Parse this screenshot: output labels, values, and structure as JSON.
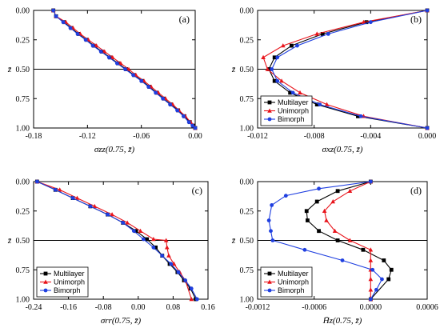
{
  "colors": {
    "Multilayer": "#000000",
    "Unimorph": "#e8141b",
    "Bimorph": "#1f3fe0",
    "frame": "#000000",
    "midline": "#000000"
  },
  "markers": {
    "Multilayer": "square",
    "Unimorph": "triangle",
    "Bimorph": "circle"
  },
  "chart_data": [
    {
      "type": "line",
      "panel_label": "(a)",
      "xlabel": "σzz(0.75, z̄)",
      "ylabel": "z̄",
      "xlim": [
        -0.18,
        0.0
      ],
      "ylim": [
        0.0,
        1.0
      ],
      "y_inverted": true,
      "xticks": [
        -0.18,
        -0.12,
        -0.06,
        0.0
      ],
      "xtick_labels": [
        "-0.18",
        "-0.12",
        "-0.06",
        "0.00"
      ],
      "yticks": [
        0.0,
        0.25,
        0.5,
        0.75,
        1.0
      ],
      "ytick_labels": [
        "0.00",
        "0.25",
        "0.50",
        "0.75",
        "1.00"
      ],
      "hline": 0.5,
      "legend": null,
      "series": [
        {
          "name": "Multilayer",
          "x": [
            -0.158,
            -0.155,
            -0.146,
            -0.138,
            -0.13,
            -0.121,
            -0.113,
            -0.104,
            -0.095,
            -0.086,
            -0.077,
            -0.068,
            -0.059,
            -0.051,
            -0.043,
            -0.035,
            -0.027,
            -0.019,
            -0.012,
            -0.006,
            -0.002,
            0.0
          ],
          "y": [
            0.0,
            0.05,
            0.1,
            0.15,
            0.2,
            0.25,
            0.3,
            0.35,
            0.4,
            0.45,
            0.5,
            0.55,
            0.6,
            0.65,
            0.7,
            0.75,
            0.8,
            0.85,
            0.9,
            0.95,
            0.98,
            1.0
          ]
        },
        {
          "name": "Unimorph",
          "x": [
            -0.158,
            -0.155,
            -0.144,
            -0.136,
            -0.128,
            -0.119,
            -0.11,
            -0.101,
            -0.092,
            -0.083,
            -0.074,
            -0.066,
            -0.057,
            -0.049,
            -0.041,
            -0.033,
            -0.025,
            -0.018,
            -0.011,
            -0.005,
            -0.002,
            0.0
          ],
          "y": [
            0.0,
            0.05,
            0.1,
            0.15,
            0.2,
            0.25,
            0.3,
            0.35,
            0.4,
            0.45,
            0.5,
            0.55,
            0.6,
            0.65,
            0.7,
            0.75,
            0.8,
            0.85,
            0.9,
            0.95,
            0.98,
            1.0
          ]
        },
        {
          "name": "Bimorph",
          "x": [
            -0.158,
            -0.155,
            -0.147,
            -0.139,
            -0.131,
            -0.122,
            -0.114,
            -0.105,
            -0.096,
            -0.087,
            -0.078,
            -0.069,
            -0.06,
            -0.052,
            -0.044,
            -0.036,
            -0.028,
            -0.02,
            -0.013,
            -0.007,
            -0.003,
            0.0
          ],
          "y": [
            0.0,
            0.05,
            0.1,
            0.15,
            0.2,
            0.25,
            0.3,
            0.35,
            0.4,
            0.45,
            0.5,
            0.55,
            0.6,
            0.65,
            0.7,
            0.75,
            0.8,
            0.85,
            0.9,
            0.95,
            0.98,
            1.0
          ]
        }
      ]
    },
    {
      "type": "line",
      "panel_label": "(b)",
      "xlabel": "σxz(0.75, z̄)",
      "ylabel": "z̄",
      "xlim": [
        -0.012,
        0.0
      ],
      "ylim": [
        0.0,
        1.0
      ],
      "y_inverted": true,
      "xticks": [
        -0.012,
        -0.008,
        -0.004,
        0.0
      ],
      "xtick_labels": [
        "-0.012",
        "-0.008",
        "-0.004",
        "0.000"
      ],
      "yticks": [
        0.0,
        0.25,
        0.5,
        0.75,
        1.0
      ],
      "ytick_labels": [
        "0.00",
        "0.25",
        "0.50",
        "0.75",
        "1.00"
      ],
      "hline": 0.5,
      "legend": "bottom-left",
      "series": [
        {
          "name": "Multilayer",
          "x": [
            0.0,
            -0.0043,
            -0.0074,
            -0.0096,
            -0.0108,
            -0.0112,
            -0.0108,
            -0.0097,
            -0.0078,
            -0.0049,
            0.0
          ],
          "y": [
            0.0,
            0.1,
            0.2,
            0.3,
            0.4,
            0.5,
            0.6,
            0.7,
            0.8,
            0.9,
            1.0
          ]
        },
        {
          "name": "Unimorph",
          "x": [
            0.0,
            -0.0045,
            -0.0078,
            -0.0102,
            -0.0116,
            -0.0113,
            -0.0103,
            -0.009,
            -0.0071,
            -0.0045,
            0.0
          ],
          "y": [
            0.0,
            0.1,
            0.2,
            0.3,
            0.4,
            0.5,
            0.6,
            0.7,
            0.8,
            0.9,
            1.0
          ]
        },
        {
          "name": "Bimorph",
          "x": [
            0.0,
            -0.004,
            -0.007,
            -0.0092,
            -0.0106,
            -0.011,
            -0.0106,
            -0.0095,
            -0.0076,
            -0.0047,
            0.0
          ],
          "y": [
            0.0,
            0.1,
            0.2,
            0.3,
            0.4,
            0.5,
            0.6,
            0.7,
            0.8,
            0.9,
            1.0
          ]
        }
      ]
    },
    {
      "type": "line",
      "panel_label": "(c)",
      "xlabel": "σrr(0.75, z̄)",
      "ylabel": "z̄",
      "xlim": [
        -0.24,
        0.16
      ],
      "ylim": [
        0.0,
        1.0
      ],
      "y_inverted": true,
      "xticks": [
        -0.24,
        -0.16,
        -0.08,
        0.0,
        0.08,
        0.16
      ],
      "xtick_labels": [
        "-0.24",
        "-0.16",
        "-0.08",
        "0.00",
        "0.08",
        "0.16"
      ],
      "yticks": [
        0.0,
        0.25,
        0.5,
        0.75,
        1.0
      ],
      "ytick_labels": [
        "0.00",
        "0.25",
        "0.50",
        "0.75",
        "1.00"
      ],
      "hline": 0.5,
      "legend": "bottom-left",
      "series": [
        {
          "name": "Multilayer",
          "x": [
            -0.232,
            -0.19,
            -0.15,
            -0.11,
            -0.07,
            -0.035,
            -0.005,
            0.02,
            0.04,
            0.055,
            0.072,
            0.09,
            0.105,
            0.12,
            0.132
          ],
          "y": [
            0.0,
            0.07,
            0.14,
            0.21,
            0.28,
            0.35,
            0.42,
            0.49,
            0.56,
            0.63,
            0.7,
            0.77,
            0.84,
            0.91,
            1.0
          ]
        },
        {
          "name": "Unimorph",
          "x": [
            -0.232,
            -0.18,
            -0.14,
            -0.1,
            -0.06,
            -0.025,
            0.005,
            0.035,
            0.064,
            0.066,
            0.07,
            0.082,
            0.095,
            0.108,
            0.122
          ],
          "y": [
            0.0,
            0.07,
            0.14,
            0.21,
            0.28,
            0.35,
            0.42,
            0.49,
            0.5,
            0.56,
            0.63,
            0.7,
            0.77,
            0.84,
            1.0
          ]
        },
        {
          "name": "Bimorph",
          "x": [
            -0.232,
            -0.19,
            -0.15,
            -0.11,
            -0.07,
            -0.035,
            -0.01,
            0.012,
            0.035,
            0.055,
            0.075,
            0.092,
            0.108,
            0.122,
            0.135
          ],
          "y": [
            0.0,
            0.07,
            0.14,
            0.21,
            0.28,
            0.35,
            0.42,
            0.49,
            0.56,
            0.63,
            0.7,
            0.77,
            0.84,
            0.91,
            1.0
          ]
        }
      ]
    },
    {
      "type": "line",
      "panel_label": "(d)",
      "xlabel": "H̄z(0.75, z̄)",
      "ylabel": "z̄",
      "xlim": [
        -0.0012,
        0.0006
      ],
      "ylim": [
        0.0,
        1.0
      ],
      "y_inverted": true,
      "xticks": [
        -0.0012,
        -0.0006,
        0.0,
        0.0006
      ],
      "xtick_labels": [
        "-0.0012",
        "-0.0006",
        "0.0000",
        "0.0006"
      ],
      "yticks": [
        0.0,
        0.25,
        0.5,
        0.75,
        1.0
      ],
      "ytick_labels": [
        "0.00",
        "0.25",
        "0.50",
        "0.75",
        "1.00"
      ],
      "hline": 0.5,
      "legend": "bottom-left",
      "series": [
        {
          "name": "Multilayer",
          "x": [
            0.0,
            -0.00035,
            -0.00057,
            -0.00068,
            -0.00067,
            -0.00055,
            -0.00035,
            -8e-05,
            0.00014,
            0.00022,
            0.00019,
            0.0
          ],
          "y": [
            0.0,
            0.08,
            0.17,
            0.25,
            0.33,
            0.42,
            0.5,
            0.58,
            0.67,
            0.75,
            0.83,
            1.0
          ]
        },
        {
          "name": "Unimorph",
          "x": [
            0.0,
            -0.00022,
            -0.0004,
            -0.00049,
            -0.00047,
            -0.00038,
            -0.00022,
            0.0,
            0.0,
            0.0,
            0.0,
            0.0,
            0.0
          ],
          "y": [
            0.0,
            0.08,
            0.17,
            0.25,
            0.33,
            0.42,
            0.5,
            0.58,
            0.67,
            0.75,
            0.83,
            0.92,
            1.0
          ]
        },
        {
          "name": "Bimorph",
          "x": [
            0.0,
            -0.00055,
            -0.0009,
            -0.00105,
            -0.00108,
            -0.00106,
            -0.00104,
            -0.0007,
            -0.0003,
            2e-05,
            0.00012,
            6e-05,
            0.0
          ],
          "y": [
            0.0,
            0.06,
            0.12,
            0.2,
            0.33,
            0.42,
            0.5,
            0.58,
            0.67,
            0.75,
            0.83,
            0.92,
            1.0
          ]
        }
      ]
    }
  ]
}
